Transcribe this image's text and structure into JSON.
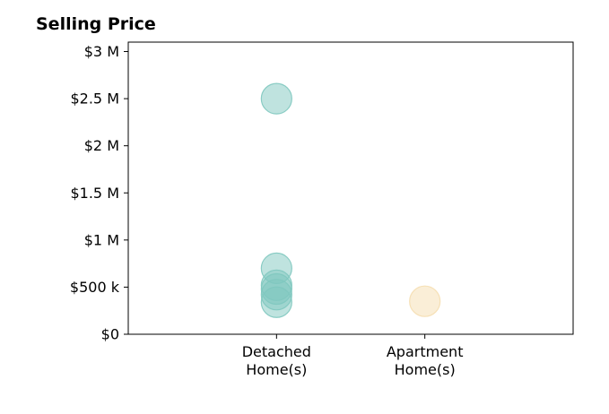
{
  "chart_data": {
    "type": "scatter",
    "title": "Selling Price",
    "categories": [
      "Detached Home(s)",
      "Apartment Home(s)"
    ],
    "category_lines": [
      [
        "Detached",
        "Home(s)"
      ],
      [
        "Apartment",
        "Home(s)"
      ]
    ],
    "yticks": [
      {
        "value": 0,
        "label": "$0"
      },
      {
        "value": 500000,
        "label": "$500 k"
      },
      {
        "value": 1000000,
        "label": "$1 M"
      },
      {
        "value": 1500000,
        "label": "$1.5 M"
      },
      {
        "value": 2000000,
        "label": "$2 M"
      },
      {
        "value": 2500000,
        "label": "$2.5 M"
      },
      {
        "value": 3000000,
        "label": "$3 M"
      }
    ],
    "ylim": [
      0,
      3100000
    ],
    "xlim": [
      0,
      3
    ],
    "category_positions": [
      1,
      2
    ],
    "grid": false,
    "series": [
      {
        "category": "Detached Home(s)",
        "color": "#7fc8bf",
        "values": [
          2500000,
          700000,
          520000,
          480000,
          420000,
          340000
        ]
      },
      {
        "category": "Apartment Home(s)",
        "color": "#f5deb0",
        "values": [
          350000
        ]
      }
    ]
  }
}
